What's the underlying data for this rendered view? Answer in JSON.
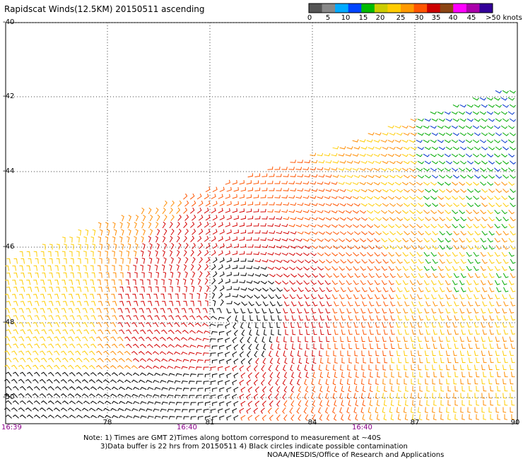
{
  "title": "Rapidscat Winds(12.5KM) 20150511 ascending",
  "colorbar": {
    "labels": [
      "0",
      "5",
      "10",
      "15",
      "20",
      "25",
      "30",
      "35",
      "40",
      "45",
      ">50 knots"
    ],
    "colors": [
      "#555555",
      "#888888",
      "#00aaff",
      "#0044ff",
      "#00bb00",
      "#cccc00",
      "#ffcc00",
      "#ff9900",
      "#ff5500",
      "#cc0000",
      "#8b4513",
      "#ff00ff",
      "#aa00aa",
      "#330099"
    ]
  },
  "axes": {
    "lat_labels": [
      "-40",
      "-42",
      "-44",
      "-46",
      "-48",
      "-50"
    ],
    "lon_labels": [
      "78",
      "81",
      "84",
      "87",
      "90"
    ],
    "time_labels": [
      "16:39",
      "16:40",
      "16:40"
    ]
  },
  "wind_colors": [
    "#000000",
    "#d40000",
    "#ff5500",
    "#ff8c00",
    "#ffcc00",
    "#ffee00",
    "#00aa00",
    "#0033cc",
    "#cc00cc"
  ],
  "notes": {
    "line1": "Note: 1) Times are GMT 2)Times along bottom correspond to measurement at ~40S",
    "line2": "3)Data buffer is 22 hrs from 20150511 4) Black circles indicate possible contamination",
    "line3": "NOAA/NESDIS/Office of Research and Applications"
  }
}
